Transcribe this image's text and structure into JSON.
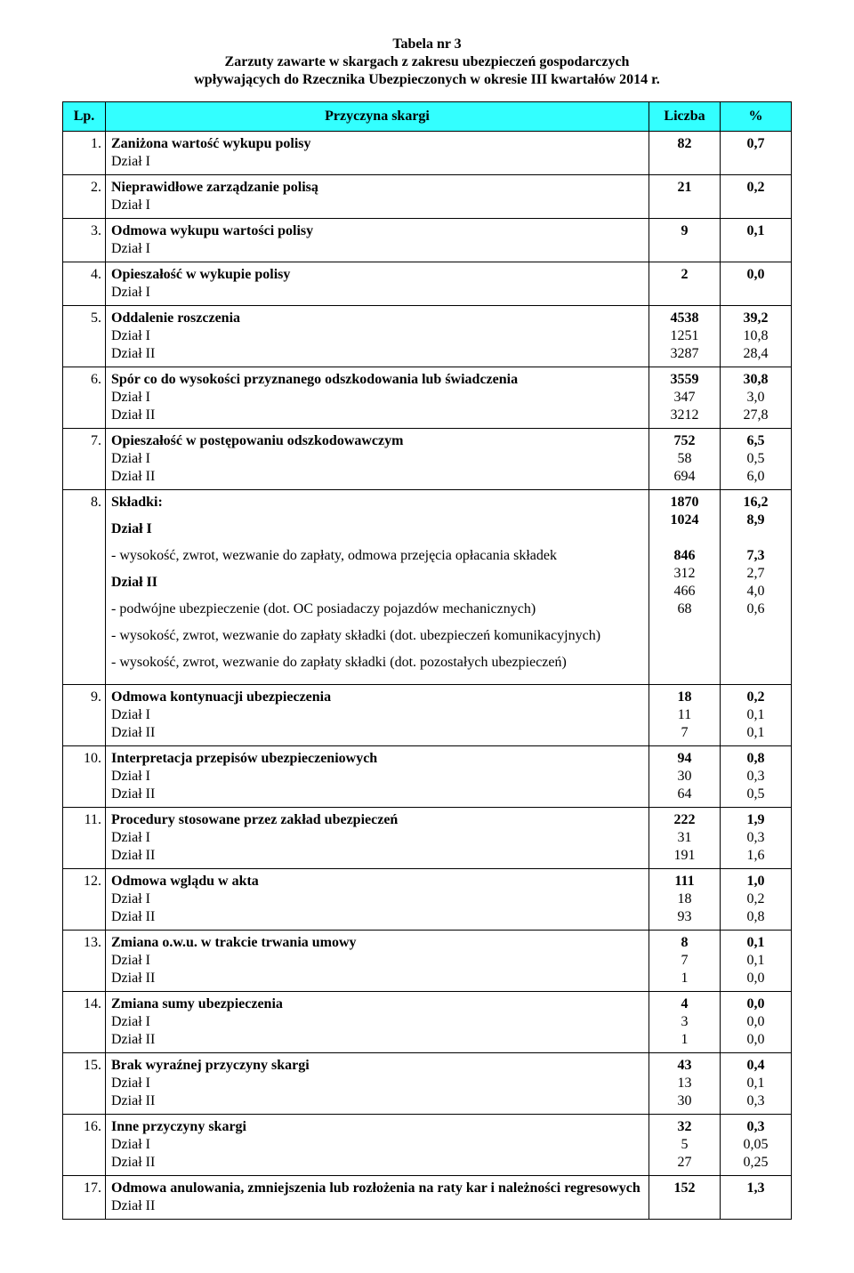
{
  "title_lines": [
    "Tabela nr 3",
    "Zarzuty zawarte w skargach z zakresu ubezpieczeń gospodarczych",
    "wpływających do Rzecznika Ubezpieczonych w okresie III kwartałów 2014 r."
  ],
  "header": {
    "lp": "Lp.",
    "desc": "Przyczyna skargi",
    "num": "Liczba",
    "pct": "%"
  },
  "header_bg": "#33ffff",
  "rows": [
    {
      "lp": "1.",
      "lines": [
        {
          "text": "Zaniżona wartość wykupu polisy",
          "num": "82",
          "pct": "0,7",
          "bold": true
        },
        {
          "text": "Dział I",
          "bold": false
        }
      ]
    },
    {
      "lp": "2.",
      "lines": [
        {
          "text": "Nieprawidłowe zarządzanie polisą",
          "num": "21",
          "pct": "0,2",
          "bold": true
        },
        {
          "text": "Dział I",
          "bold": false
        }
      ]
    },
    {
      "lp": "3.",
      "lines": [
        {
          "text": "Odmowa wykupu wartości polisy",
          "num": "9",
          "pct": "0,1",
          "bold": true
        },
        {
          "text": "Dział I",
          "bold": false
        }
      ]
    },
    {
      "lp": "4.",
      "lines": [
        {
          "text": "Opieszałość w wykupie polisy",
          "num": "2",
          "pct": "0,0",
          "bold": true
        },
        {
          "text": "Dział I",
          "bold": false
        }
      ]
    },
    {
      "lp": "5.",
      "lines": [
        {
          "text": "Oddalenie roszczenia",
          "num": "4538",
          "pct": "39,2",
          "bold": true
        },
        {
          "text": "Dział I",
          "num": "1251",
          "pct": "10,8",
          "bold": false
        },
        {
          "text": "Dział II",
          "num": "3287",
          "pct": "28,4",
          "bold": false
        }
      ]
    },
    {
      "lp": "6.",
      "lines": [
        {
          "text": "Spór co do wysokości przyznanego odszkodowania lub świadczenia",
          "num": "3559",
          "pct": "30,8",
          "bold": true
        },
        {
          "text": "Dział I",
          "num": "347",
          "pct": "3,0",
          "bold": false
        },
        {
          "text": "Dział II",
          "num": "3212",
          "pct": "27,8",
          "bold": false
        }
      ]
    },
    {
      "lp": "7.",
      "lines": [
        {
          "text": "Opieszałość w postępowaniu odszkodowawczym",
          "num": "752",
          "pct": "6,5",
          "bold": true
        },
        {
          "text": "Dział I",
          "num": "58",
          "pct": "0,5",
          "bold": false
        },
        {
          "text": "Dział II",
          "num": "694",
          "pct": "6,0",
          "bold": false
        }
      ]
    },
    {
      "lp": "8.",
      "lines": [
        {
          "text": "Składki:",
          "num": "1870",
          "pct": "16,2",
          "bold": true
        },
        {
          "spacer": true
        },
        {
          "text": "Dział I",
          "num": "1024",
          "pct": "8,9",
          "bold": true
        },
        {
          "spacer": true
        },
        {
          "text": "- wysokość, zwrot, wezwanie do zapłaty, odmowa przejęcia opłacania składek",
          "bold": false
        },
        {
          "spacer": true
        },
        {
          "text": "Dział II",
          "num": "846",
          "pct": "7,3",
          "bold": true
        },
        {
          "spacer": true
        },
        {
          "text": "- podwójne ubezpieczenie (dot. OC posiadaczy pojazdów mechanicznych)",
          "num": "312",
          "pct": "2,7",
          "bold": false
        },
        {
          "spacer": true
        },
        {
          "text": "- wysokość, zwrot, wezwanie do zapłaty składki (dot. ubezpieczeń komunikacyjnych)",
          "num": "466",
          "pct": "4,0",
          "bold": false
        },
        {
          "spacer": true
        },
        {
          "text": "- wysokość, zwrot, wezwanie do zapłaty składki (dot. pozostałych ubezpieczeń)",
          "num": "68",
          "pct": "0,6",
          "bold": false
        },
        {
          "spacer": true
        }
      ]
    },
    {
      "lp": "9.",
      "lines": [
        {
          "text": "Odmowa kontynuacji ubezpieczenia",
          "num": "18",
          "pct": "0,2",
          "bold": true
        },
        {
          "text": "Dział I",
          "num": "11",
          "pct": "0,1",
          "bold": false
        },
        {
          "text": "Dział II",
          "num": "7",
          "pct": "0,1",
          "bold": false
        }
      ]
    },
    {
      "lp": "10.",
      "lines": [
        {
          "text": "Interpretacja przepisów ubezpieczeniowych",
          "num": "94",
          "pct": "0,8",
          "bold": true
        },
        {
          "text": "Dział I",
          "num": "30",
          "pct": "0,3",
          "bold": false
        },
        {
          "text": "Dział II",
          "num": "64",
          "pct": "0,5",
          "bold": false
        }
      ]
    },
    {
      "lp": "11.",
      "lines": [
        {
          "text": "Procedury stosowane przez zakład ubezpieczeń",
          "num": "222",
          "pct": "1,9",
          "bold": true
        },
        {
          "text": "Dział I",
          "num": "31",
          "pct": "0,3",
          "bold": false
        },
        {
          "text": "Dział II",
          "num": "191",
          "pct": "1,6",
          "bold": false
        }
      ]
    },
    {
      "lp": "12.",
      "lines": [
        {
          "text": "Odmowa wglądu w akta",
          "num": "111",
          "pct": "1,0",
          "bold": true
        },
        {
          "text": "Dział I",
          "num": "18",
          "pct": "0,2",
          "bold": false
        },
        {
          "text": "Dział II",
          "num": "93",
          "pct": "0,8",
          "bold": false
        }
      ]
    },
    {
      "lp": "13.",
      "lines": [
        {
          "text": "Zmiana o.w.u. w trakcie trwania umowy",
          "num": "8",
          "pct": "0,1",
          "bold": true
        },
        {
          "text": "Dział I",
          "num": "7",
          "pct": "0,1",
          "bold": false
        },
        {
          "text": "Dział II",
          "num": "1",
          "pct": "0,0",
          "bold": false
        }
      ]
    },
    {
      "lp": "14.",
      "lines": [
        {
          "text": "Zmiana sumy ubezpieczenia",
          "num": "4",
          "pct": "0,0",
          "bold": true
        },
        {
          "text": "Dział I",
          "num": "3",
          "pct": "0,0",
          "bold": false
        },
        {
          "text": "Dział II",
          "num": "1",
          "pct": "0,0",
          "bold": false
        }
      ]
    },
    {
      "lp": "15.",
      "lines": [
        {
          "text": "Brak wyraźnej przyczyny skargi",
          "num": "43",
          "pct": "0,4",
          "bold": true
        },
        {
          "text": "Dział I",
          "num": "13",
          "pct": "0,1",
          "bold": false
        },
        {
          "text": "Dział II",
          "num": "30",
          "pct": "0,3",
          "bold": false
        }
      ]
    },
    {
      "lp": "16.",
      "lines": [
        {
          "text": "Inne przyczyny skargi",
          "num": "32",
          "pct": "0,3",
          "bold": true
        },
        {
          "text": "Dział I",
          "num": "5",
          "pct": "0,05",
          "bold": false
        },
        {
          "text": "Dział II",
          "num": "27",
          "pct": "0,25",
          "bold": false
        }
      ]
    },
    {
      "lp": "17.",
      "lines": [
        {
          "text": "Odmowa anulowania, zmniejszenia lub rozłożenia na raty kar i należności regresowych",
          "num": "152",
          "pct": "1,3",
          "bold": true
        },
        {
          "text": "Dział II",
          "bold": false
        }
      ]
    }
  ]
}
